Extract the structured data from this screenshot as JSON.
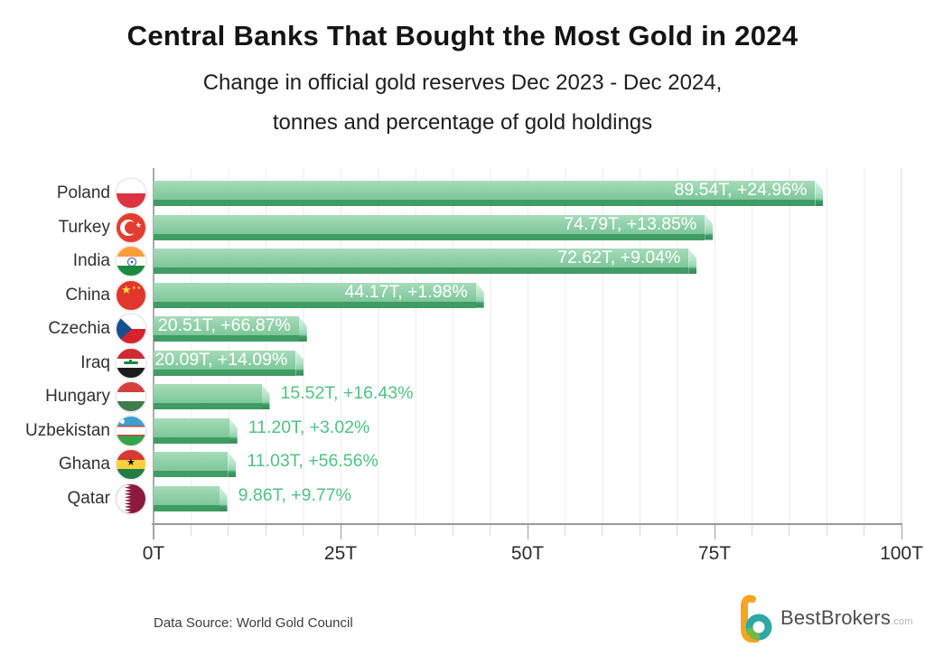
{
  "title": "Central Banks That Bought the Most Gold in 2024",
  "subtitle_line1": "Change in official gold reserves Dec 2023 - Dec 2024,",
  "subtitle_line2": "tonnes and percentage of gold holdings",
  "footer": {
    "data_source": "Data Source: World Gold Council",
    "brand": "BestBrokers",
    "brand_suffix": ".com"
  },
  "chart_data": {
    "type": "bar",
    "orientation": "horizontal",
    "unit": "tonnes",
    "title": "Central Banks That Bought the Most Gold in 2024",
    "xlim": [
      0,
      100
    ],
    "x_ticks": [
      "0T",
      "25T",
      "50T",
      "75T",
      "100T"
    ],
    "minor_grid_step_tonnes": 5,
    "grid": true,
    "categories": [
      "Poland",
      "Turkey",
      "India",
      "China",
      "Czechia",
      "Iraq",
      "Hungary",
      "Uzbekistan",
      "Ghana",
      "Qatar"
    ],
    "values": [
      89.54,
      74.79,
      72.62,
      44.17,
      20.51,
      20.09,
      15.52,
      11.2,
      11.03,
      9.86
    ],
    "pct_change": [
      24.96,
      13.85,
      9.04,
      1.98,
      66.87,
      14.09,
      16.43,
      3.02,
      56.56,
      9.77
    ],
    "bar_labels": [
      "89.54T, +24.96%",
      "74.79T, +13.85%",
      "72.62T, +9.04%",
      "44.17T, +1.98%",
      "20.51T, +66.87%",
      "20.09T, +14.09%",
      "15.52T, +16.43%",
      "11.20T, +3.02%",
      "11.03T, +56.56%",
      "9.86T, +9.77%"
    ],
    "label_inside": [
      true,
      true,
      true,
      true,
      true,
      true,
      false,
      false,
      false,
      false
    ],
    "flags": [
      "poland",
      "turkey",
      "india",
      "china",
      "czechia",
      "iraq",
      "hungary",
      "uzbekistan",
      "ghana",
      "qatar"
    ],
    "colors": {
      "bar_face_top": "#a7dcba",
      "bar_face_bottom": "#7ec79a",
      "bar_shadow": "#3f9c63",
      "bar_bevel_highlight": "#d9f4e3",
      "label_inside": "#ffffff",
      "label_outside": "#4fc382"
    }
  }
}
